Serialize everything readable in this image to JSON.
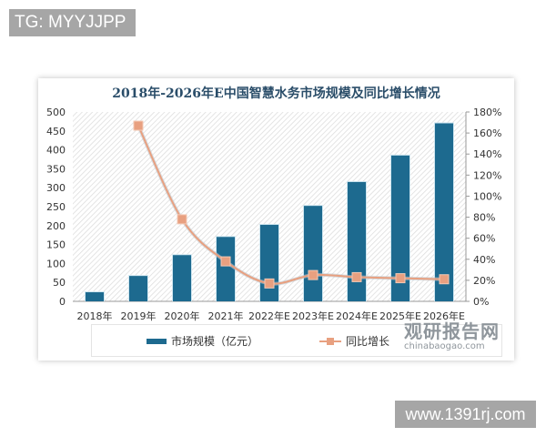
{
  "watermarks": {
    "top_left": "TG: MYYJJPP",
    "bottom_right": "www.1391rj.com",
    "brand_main": "观研报告网",
    "brand_sub": "chinabaogao.com"
  },
  "legend": {
    "bar_label": "市场规模（亿元）",
    "line_label": "同比增长"
  },
  "colors": {
    "bar": "#1d6a8f",
    "line": "#e8a080",
    "title": "#2a4d69"
  },
  "chart_data": {
    "type": "bar",
    "title": "2018年-2026年E中国智慧水务市场规模及同比增长情况",
    "categories": [
      "2018年",
      "2019年",
      "2020年",
      "2021年",
      "2022年E",
      "2023年E",
      "2024年E",
      "2025年E",
      "2026年E"
    ],
    "series": [
      {
        "name": "市场规模（亿元）",
        "type": "bar",
        "axis": "left",
        "values": [
          24,
          67,
          122,
          170,
          202,
          252,
          315,
          385,
          470
        ]
      },
      {
        "name": "同比增长",
        "type": "line",
        "axis": "right",
        "unit": "%",
        "values": [
          null,
          167,
          78,
          38,
          17,
          25,
          23,
          22,
          21
        ]
      }
    ],
    "left_axis": {
      "ylim": [
        0,
        500
      ],
      "ticks": [
        "0",
        "50",
        "100",
        "150",
        "200",
        "250",
        "300",
        "350",
        "400",
        "450",
        "500"
      ]
    },
    "right_axis": {
      "ylim": [
        0,
        180
      ],
      "ticks": [
        "0%",
        "20%",
        "40%",
        "60%",
        "80%",
        "100%",
        "120%",
        "140%",
        "160%",
        "180%"
      ]
    },
    "xlabel": "",
    "ylabel": "",
    "grid": false,
    "legend_position": "bottom"
  }
}
